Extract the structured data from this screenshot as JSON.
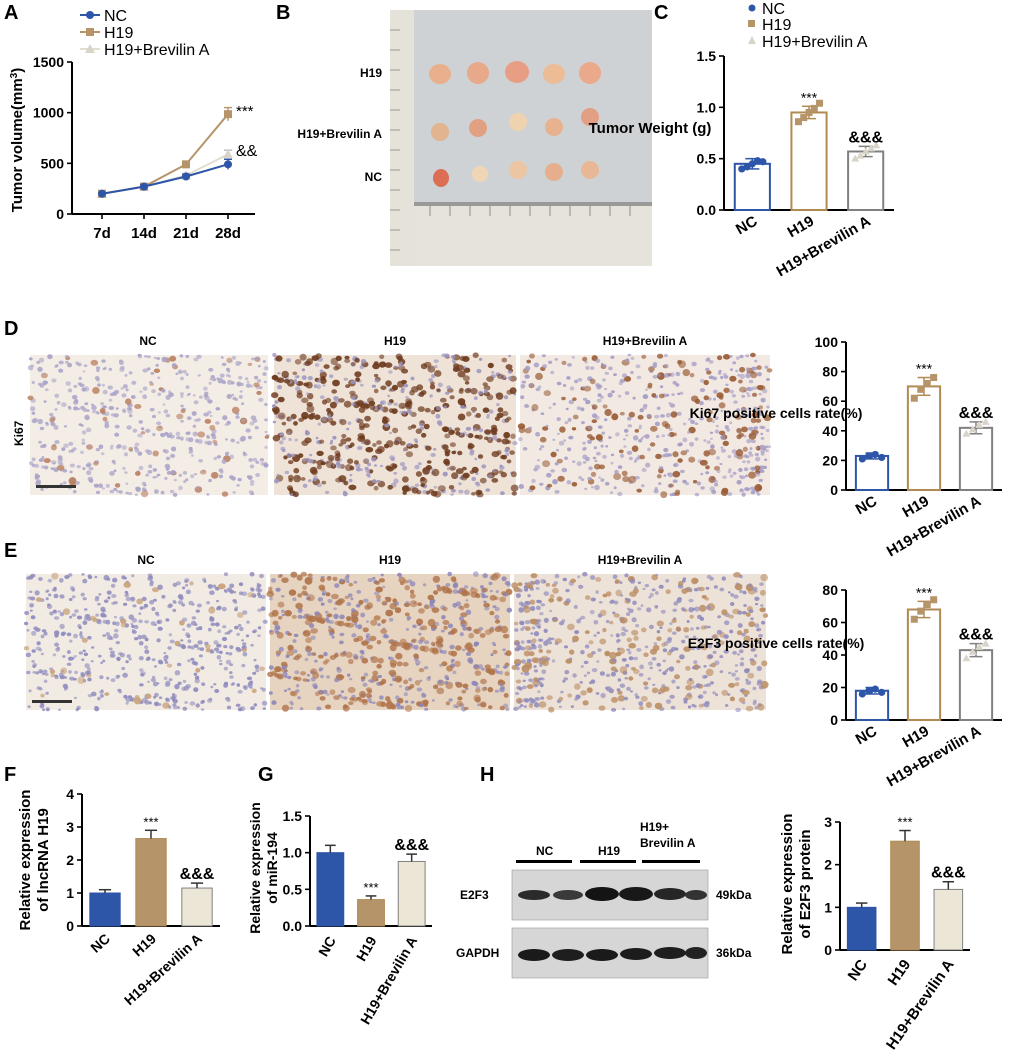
{
  "panels": [
    "A",
    "B",
    "C",
    "D",
    "E",
    "F",
    "G",
    "H"
  ],
  "colors": {
    "nc": "#2d55a8",
    "h19": "#b5946a",
    "brev": "#ece6d6",
    "brev_line": "#e2ddd0",
    "bar_outline_nc": "#2d55a8",
    "bar_outline_h19": "#b08a52",
    "bar_outline_brev": "#808080"
  },
  "photo": {
    "row_labels": [
      "H19",
      "H19+Brevilin A",
      "NC"
    ]
  },
  "ihc_d": {
    "row_label": "Ki67",
    "columns": [
      "NC",
      "H19",
      "H19+Brevilin A"
    ]
  },
  "ihc_e": {
    "columns": [
      "NC",
      "H19",
      "H19+Brevilin A"
    ]
  },
  "blot": {
    "groups": [
      "NC",
      "H19",
      "H19+\nBrevilin A"
    ],
    "group_line1": "H19+",
    "group_line2": "Brevilin A",
    "rows": [
      "E2F3",
      "GAPDH"
    ],
    "sizes": [
      "49kDa",
      "36kDa"
    ]
  },
  "chart_data": [
    {
      "panel": "A",
      "type": "line",
      "x": [
        "7d",
        "14d",
        "21d",
        "28d"
      ],
      "ylabel": "Tumor volume(mm3)",
      "ylim": [
        0,
        1500
      ],
      "yticks": [
        0,
        500,
        1000,
        1500
      ],
      "legend": [
        "NC",
        "H19",
        "H19+Brevilin A"
      ],
      "series": [
        {
          "name": "NC",
          "values": [
            200,
            270,
            370,
            490
          ],
          "err": [
            0,
            15,
            20,
            50
          ]
        },
        {
          "name": "H19",
          "values": [
            200,
            270,
            490,
            985
          ],
          "err": [
            0,
            15,
            20,
            65
          ]
        },
        {
          "name": "H19+Brevilin A",
          "values": [
            200,
            270,
            380,
            590
          ],
          "err": [
            0,
            15,
            20,
            40
          ]
        }
      ],
      "annotations": [
        "***",
        "&&"
      ]
    },
    {
      "panel": "C",
      "type": "bar",
      "categories": [
        "NC",
        "H19",
        "H19+Brevilin A"
      ],
      "values": [
        0.45,
        0.95,
        0.57
      ],
      "err": [
        0.05,
        0.06,
        0.05
      ],
      "ylabel": "Tumor Weight (g)",
      "ylim": [
        0,
        1.5
      ],
      "yticks": [
        "0.0",
        "0.5",
        "1.0",
        "1.5"
      ],
      "legend": [
        "NC",
        "H19",
        "H19+Brevilin A"
      ],
      "points": [
        [
          0.4,
          0.42,
          0.45,
          0.48,
          0.47
        ],
        [
          0.86,
          0.9,
          0.95,
          0.99,
          1.04
        ],
        [
          0.5,
          0.53,
          0.57,
          0.6,
          0.63
        ]
      ],
      "annotations": [
        "***",
        "&&&"
      ]
    },
    {
      "panel": "D",
      "type": "bar",
      "categories": [
        "NC",
        "H19",
        "H19+Brevilin A"
      ],
      "values": [
        23,
        70,
        42
      ],
      "err": [
        2,
        6,
        4
      ],
      "ylabel": "Ki67 positive cells rate(%)",
      "ylim": [
        0,
        100
      ],
      "yticks": [
        "0",
        "20",
        "40",
        "60",
        "80",
        "100"
      ],
      "points": [
        [
          21,
          23,
          24,
          22
        ],
        [
          62,
          68,
          72,
          76
        ],
        [
          38,
          41,
          44,
          46
        ]
      ],
      "annotations": [
        "***",
        "&&&"
      ]
    },
    {
      "panel": "E",
      "type": "bar",
      "categories": [
        "NC",
        "H19",
        "H19+Brevilin A"
      ],
      "values": [
        18,
        68,
        43
      ],
      "err": [
        2,
        5,
        4
      ],
      "ylabel": "E2F3 positive cells rate(%)",
      "ylim": [
        0,
        80
      ],
      "yticks": [
        "0",
        "20",
        "40",
        "60",
        "80"
      ],
      "points": [
        [
          16,
          18,
          19,
          17
        ],
        [
          62,
          67,
          71,
          74
        ],
        [
          38,
          42,
          45,
          47
        ]
      ],
      "annotations": [
        "***",
        "&&&"
      ]
    },
    {
      "panel": "F",
      "type": "bar",
      "categories": [
        "NC",
        "H19",
        "H19+Brevilin A"
      ],
      "values": [
        1.0,
        2.65,
        1.15
      ],
      "err": [
        0.1,
        0.25,
        0.15
      ],
      "ylabel": "Relative expression of lncRNA H19",
      "ylim": [
        0,
        4
      ],
      "yticks": [
        "0",
        "1",
        "2",
        "3",
        "4"
      ],
      "annotations": [
        "***",
        "&&&"
      ]
    },
    {
      "panel": "G",
      "type": "bar",
      "categories": [
        "NC",
        "H19",
        "H19+Brevilin A"
      ],
      "values": [
        1.0,
        0.36,
        0.88
      ],
      "err": [
        0.1,
        0.05,
        0.1
      ],
      "ylabel": "Relative expression of miR-194",
      "ylim": [
        0,
        1.5
      ],
      "yticks": [
        "0.0",
        "0.5",
        "1.0",
        "1.5"
      ],
      "annotations": [
        "***",
        "&&&"
      ]
    },
    {
      "panel": "H",
      "type": "bar",
      "categories": [
        "NC",
        "H19",
        "H19+Brevilin A"
      ],
      "values": [
        1.0,
        2.55,
        1.42
      ],
      "err": [
        0.1,
        0.25,
        0.18
      ],
      "ylabel": "Relative expression of E2F3 protein",
      "ylim": [
        0,
        3
      ],
      "yticks": [
        "0",
        "1",
        "2",
        "3"
      ],
      "annotations": [
        "***",
        "&&&"
      ]
    }
  ]
}
